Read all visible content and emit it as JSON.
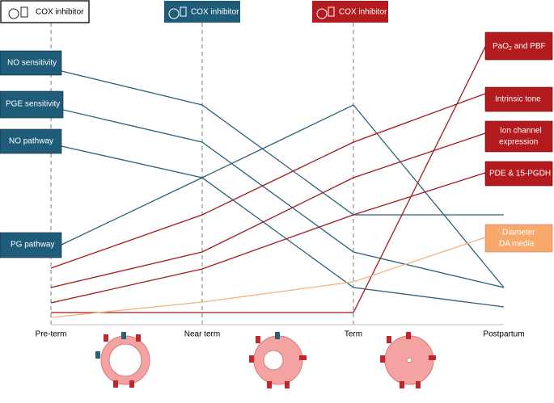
{
  "cox_labels": [
    "COX inhibitor",
    "COX inhibitor",
    "COX inhibitor"
  ],
  "left_labels": [
    "NO sensitivity",
    "PGE sensitivity",
    "NO pathway",
    "PG pathway"
  ],
  "right_labels": {
    "pao2": [
      "PaO",
      "2",
      " and PBF"
    ],
    "intrinsic": [
      "Intrinsic tone"
    ],
    "ion": [
      "Ion channel",
      "expression"
    ],
    "pde": [
      "PDE & 15-PGDH"
    ],
    "diameter": [
      "Diameter",
      "DA media"
    ]
  },
  "x_labels": [
    "Pre-term",
    "Near term",
    "Term",
    "Postpartum"
  ]
}
